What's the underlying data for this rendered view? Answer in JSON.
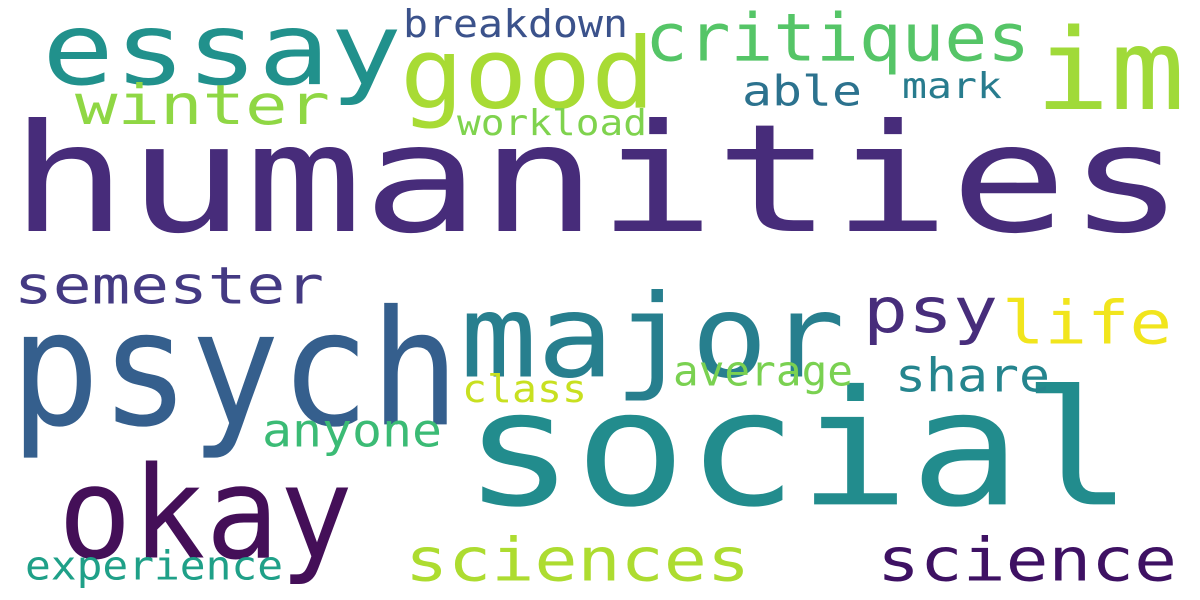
{
  "background": "#ffffff",
  "words": [
    {
      "text": "humanities",
      "color": "#472c7a"
    },
    {
      "text": "social",
      "color": "#228c8d"
    },
    {
      "text": "psych",
      "color": "#355f8d"
    },
    {
      "text": "major",
      "color": "#277f8e"
    },
    {
      "text": "okay",
      "color": "#440f58"
    },
    {
      "text": "essay",
      "color": "#21918c"
    },
    {
      "text": "im",
      "color": "#a0da39"
    },
    {
      "text": "good",
      "color": "#a8db34"
    },
    {
      "text": "critiques",
      "color": "#55c567"
    },
    {
      "text": "winter",
      "color": "#8fd744"
    },
    {
      "text": "semester",
      "color": "#443a83"
    },
    {
      "text": "psy",
      "color": "#472d7b"
    },
    {
      "text": "life",
      "color": "#f1e51d"
    },
    {
      "text": "sciences",
      "color": "#addc30"
    },
    {
      "text": "science",
      "color": "#3e1163"
    },
    {
      "text": "anyone",
      "color": "#3bbb75"
    },
    {
      "text": "share",
      "color": "#25858e"
    },
    {
      "text": "average",
      "color": "#7ad151"
    },
    {
      "text": "class",
      "color": "#c8e020"
    },
    {
      "text": "experience",
      "color": "#1fa088"
    },
    {
      "text": "breakdown",
      "color": "#3b528b"
    },
    {
      "text": "able",
      "color": "#2c728e"
    },
    {
      "text": "mark",
      "color": "#287c8e"
    },
    {
      "text": "workload",
      "color": "#7fd34e"
    }
  ]
}
